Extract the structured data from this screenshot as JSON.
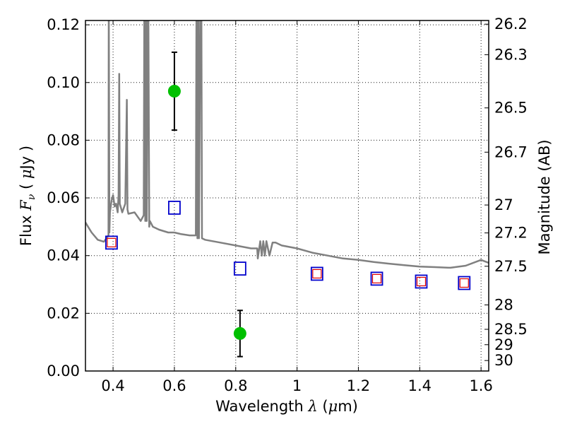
{
  "chart_data": {
    "type": "scatter",
    "title": "",
    "xlabel": {
      "prefix": "Wavelength  ",
      "symbol": "λ",
      "open": " (",
      "mu": "μ",
      "unit": "m)"
    },
    "ylabel": {
      "prefix": "Flux  ",
      "symbol": "F",
      "sub": "ν",
      "mid": "  ( ",
      "mu": "μ",
      "unit": "Jy )"
    },
    "y2label": "Magnitude (AB)",
    "xlim": [
      0.31,
      1.625
    ],
    "ylim": [
      0.0,
      0.1215
    ],
    "xticks": [
      {
        "value": 0.4,
        "label": "0.4"
      },
      {
        "value": 0.6,
        "label": "0.6"
      },
      {
        "value": 0.8,
        "label": "0.8"
      },
      {
        "value": 1.0,
        "label": "1"
      },
      {
        "value": 1.2,
        "label": "1.2"
      },
      {
        "value": 1.4,
        "label": "1.4"
      },
      {
        "value": 1.6,
        "label": "1.6"
      }
    ],
    "yticks": [
      {
        "value": 0.0,
        "label": "0.00"
      },
      {
        "value": 0.02,
        "label": "0.02"
      },
      {
        "value": 0.04,
        "label": "0.04"
      },
      {
        "value": 0.06,
        "label": "0.06"
      },
      {
        "value": 0.08,
        "label": "0.08"
      },
      {
        "value": 0.1,
        "label": "0.10"
      },
      {
        "value": 0.12,
        "label": "0.12"
      }
    ],
    "y2ticks": [
      {
        "value": 26.2,
        "label": "26.2"
      },
      {
        "value": 26.3,
        "label": "26.3"
      },
      {
        "value": 26.5,
        "label": "26.5"
      },
      {
        "value": 26.7,
        "label": "26.7"
      },
      {
        "value": 27.0,
        "label": "27"
      },
      {
        "value": 27.2,
        "label": "27.2"
      },
      {
        "value": 27.5,
        "label": "27.5"
      },
      {
        "value": 28.0,
        "label": "28"
      },
      {
        "value": 28.5,
        "label": "28.5"
      },
      {
        "value": 29.0,
        "label": "29"
      },
      {
        "value": 30.0,
        "label": "30"
      }
    ],
    "grid": true,
    "colors": {
      "model": "#808080",
      "detection": "#00c000",
      "errorbar": "#000000",
      "model_box": "#0000cc",
      "observed_box": "#e00000"
    },
    "series": [
      {
        "kind": "model-spectrum",
        "x": [
          0.31,
          0.33,
          0.35,
          0.37,
          0.385,
          0.386,
          0.388,
          0.39,
          0.395,
          0.4,
          0.405,
          0.41,
          0.415,
          0.418,
          0.42,
          0.422,
          0.43,
          0.44,
          0.445,
          0.447,
          0.45,
          0.47,
          0.49,
          0.5,
          0.502,
          0.505,
          0.508,
          0.51,
          0.513,
          0.515,
          0.518,
          0.52,
          0.53,
          0.55,
          0.58,
          0.6,
          0.62,
          0.65,
          0.67,
          0.672,
          0.675,
          0.678,
          0.68,
          0.685,
          0.688,
          0.69,
          0.7,
          0.75,
          0.8,
          0.85,
          0.87,
          0.872,
          0.88,
          0.885,
          0.89,
          0.895,
          0.9,
          0.91,
          0.92,
          0.93,
          0.95,
          1.0,
          1.05,
          1.1,
          1.15,
          1.2,
          1.25,
          1.3,
          1.35,
          1.4,
          1.45,
          1.5,
          1.55,
          1.6,
          1.625
        ],
        "y": [
          0.0515,
          0.048,
          0.0455,
          0.0448,
          0.047,
          0.13,
          0.048,
          0.055,
          0.059,
          0.061,
          0.057,
          0.058,
          0.055,
          0.061,
          0.103,
          0.058,
          0.055,
          0.058,
          0.094,
          0.056,
          0.0545,
          0.055,
          0.052,
          0.054,
          0.13,
          0.052,
          0.13,
          0.052,
          0.13,
          0.13,
          0.05,
          0.052,
          0.05,
          0.049,
          0.048,
          0.048,
          0.0475,
          0.047,
          0.047,
          0.13,
          0.046,
          0.13,
          0.046,
          0.13,
          0.13,
          0.046,
          0.0455,
          0.0445,
          0.0435,
          0.0425,
          0.0425,
          0.039,
          0.045,
          0.04,
          0.045,
          0.04,
          0.045,
          0.04,
          0.0445,
          0.0445,
          0.0435,
          0.0425,
          0.041,
          0.04,
          0.039,
          0.0385,
          0.0378,
          0.0372,
          0.0367,
          0.0362,
          0.036,
          0.0358,
          0.0365,
          0.0385,
          0.0375
        ]
      },
      {
        "kind": "detections",
        "points": [
          {
            "x": 0.6,
            "y": 0.097,
            "err_lo": 0.0835,
            "err_hi": 0.1105
          },
          {
            "x": 0.814,
            "y": 0.013,
            "err_lo": 0.005,
            "err_hi": 0.021
          }
        ]
      },
      {
        "kind": "model-photometry",
        "points": [
          {
            "x": 0.395,
            "y": 0.0445
          },
          {
            "x": 0.6,
            "y": 0.0566
          },
          {
            "x": 0.814,
            "y": 0.0355
          },
          {
            "x": 1.065,
            "y": 0.0337
          },
          {
            "x": 1.26,
            "y": 0.032
          },
          {
            "x": 1.405,
            "y": 0.031
          },
          {
            "x": 1.545,
            "y": 0.0305
          }
        ]
      },
      {
        "kind": "observed-photometry",
        "points": [
          {
            "x": 0.395,
            "y": 0.0445
          },
          {
            "x": 1.065,
            "y": 0.0337
          },
          {
            "x": 1.26,
            "y": 0.032
          },
          {
            "x": 1.405,
            "y": 0.031
          },
          {
            "x": 1.545,
            "y": 0.0305
          }
        ]
      }
    ]
  }
}
